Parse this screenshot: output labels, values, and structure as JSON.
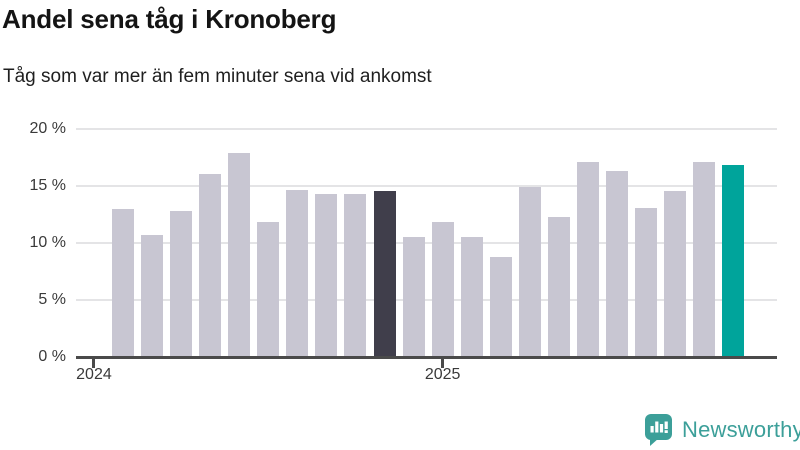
{
  "header": {
    "title": "Andel sena tåg i Kronoberg",
    "subtitle": "Tåg som var mer än fem minuter sena vid ankomst"
  },
  "footer": {
    "brand": "Newsworthy"
  },
  "colors": {
    "bar_default": "#c8c6d2",
    "bar_highlight_dark": "#403e4b",
    "bar_highlight_teal": "#00a49b",
    "gridline": "#e4e4e6",
    "axis": "#4a4a4a",
    "brand_teal": "#3c9f99",
    "title_text": "#141414",
    "tick_text": "#3a3a3a"
  },
  "chart_data": {
    "type": "bar",
    "title": "Andel sena tåg i Kronoberg",
    "subtitle": "Tåg som var mer än fem minuter sena vid ankomst",
    "values": [
      13.0,
      10.7,
      12.8,
      16.1,
      17.9,
      11.9,
      14.7,
      14.3,
      14.3,
      14.6,
      10.5,
      11.9,
      10.5,
      8.8,
      14.9,
      12.3,
      17.1,
      16.3,
      13.1,
      14.6,
      17.1,
      16.9
    ],
    "highlight_dark_index": 9,
    "highlight_teal_index": 21,
    "y_ticks": [
      0,
      5,
      10,
      15,
      20
    ],
    "y_tick_labels": [
      "0 %",
      "5 %",
      "10 %",
      "15 %",
      "20 %"
    ],
    "x_tick_labels": [
      "2024",
      "2025"
    ],
    "x_tick_bar_offsets": [
      -1,
      11
    ],
    "ylim": [
      0,
      20
    ],
    "grid": "on",
    "legend": "none",
    "unit": "%"
  }
}
